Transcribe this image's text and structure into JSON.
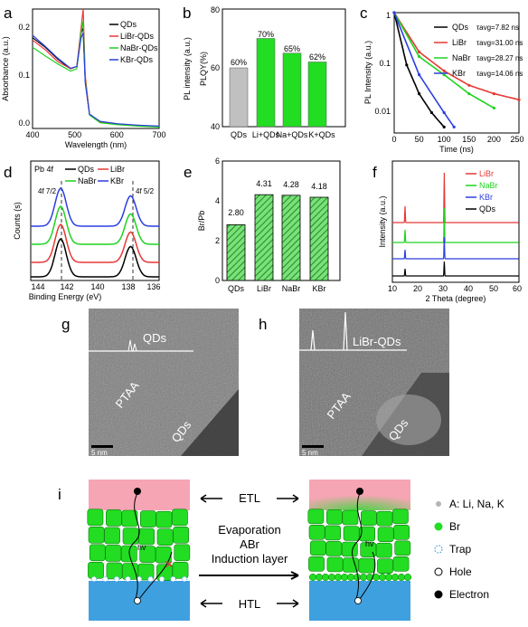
{
  "panels": {
    "a": {
      "label": "a",
      "xlabel": "Wavelength (nm)",
      "ylabel": "Absorbance (a.u.)",
      "xticks": [
        "400",
        "500",
        "600",
        "700"
      ],
      "yticks": [
        "0.0",
        "0.1",
        "0.2"
      ],
      "legend": [
        "QDs",
        "LiBr-QDs",
        "NaBr-QDs",
        "KBr-QDs"
      ]
    },
    "b": {
      "label": "b",
      "ylabel": "PLQY(%)",
      "y2label": "PL intensity (a.u.)",
      "yticks": [
        "40",
        "60",
        "80"
      ],
      "bar_labels": [
        "60%",
        "70%",
        "65%",
        "62%"
      ],
      "categories": [
        "QDs",
        "Li+QDs",
        "Na+QDs",
        "K+QDs"
      ]
    },
    "c": {
      "label": "c",
      "xlabel": "Time (ns)",
      "ylabel": "PL Intensity (a.u.)",
      "xticks": [
        "0",
        "50",
        "100",
        "150",
        "200",
        "250"
      ],
      "yticks": [
        "1",
        "0.1",
        "0.01"
      ],
      "legend": [
        {
          "name": "QDs",
          "tau": "τavg=7.82 ns"
        },
        {
          "name": "LiBr",
          "tau": "τavg=31.00 ns"
        },
        {
          "name": "NaBr",
          "tau": "τavg=28.27 ns"
        },
        {
          "name": "KBr",
          "tau": "τavg=14.06 ns"
        }
      ]
    },
    "d": {
      "label": "d",
      "xlabel": "Binding Energy (eV)",
      "ylabel": "Counts (s)",
      "xticks": [
        "144",
        "142",
        "140",
        "138",
        "136"
      ],
      "tag": "Pb 4f",
      "legend": [
        "QDs",
        "LiBr",
        "NaBr",
        "KBr"
      ],
      "peak1": "4f 7/2",
      "peak2": "4f 5/2"
    },
    "e": {
      "label": "e",
      "ylabel": "Br/Pb",
      "yticks": [
        "0",
        "2",
        "4",
        "6"
      ],
      "bar_labels": [
        "2.80",
        "4.31",
        "4.28",
        "4.18"
      ],
      "categories": [
        "QDs",
        "LiBr",
        "NaBr",
        "KBr"
      ]
    },
    "f": {
      "label": "f",
      "xlabel": "2 Theta (degree)",
      "ylabel": "Intensity (a.u.)",
      "xticks": [
        "10",
        "20",
        "30",
        "40",
        "50",
        "60"
      ],
      "legend": [
        "LiBr",
        "NaBr",
        "KBr",
        "QDs"
      ]
    },
    "g": {
      "label": "g",
      "title": "QDs",
      "region1": "PTAA",
      "region2": "QDs",
      "scale": "5 nm"
    },
    "h": {
      "label": "h",
      "title": "LiBr-QDs",
      "region1": "PTAA",
      "region2": "QDs",
      "scale": "5 nm"
    },
    "i": {
      "label": "i",
      "etl": "ETL",
      "htl": "HTL",
      "process": [
        "Evaporation",
        "ABr",
        "Induction layer"
      ],
      "hv": "hv",
      "hole_mark": "h",
      "legend": [
        "A: Li, Na, K",
        "Br",
        "Trap",
        "Hole",
        "Electron"
      ]
    }
  },
  "colors": {
    "QDs": "#000000",
    "LiBr": "#e53935",
    "NaBr": "#1ed31e",
    "KBr": "#2b3fe0",
    "bar_gray": "#c0c0c0",
    "bar_green": "#22dd22",
    "hatch_green": "#1fa81f",
    "etl": "#f6a5b4",
    "htl": "#3fa0e0"
  },
  "chart_data": [
    {
      "type": "line",
      "panel": "a",
      "xlabel": "Wavelength (nm)",
      "ylabel": "Absorbance (a.u.)",
      "xlim": [
        400,
        700
      ],
      "ylim": [
        0,
        0.25
      ],
      "series": [
        {
          "name": "QDs",
          "x": [
            400,
            430,
            460,
            490,
            505,
            515,
            520,
            525,
            535,
            560,
            600,
            650,
            700
          ],
          "y": [
            0.19,
            0.17,
            0.145,
            0.125,
            0.13,
            0.2,
            0.21,
            0.1,
            0.03,
            0.014,
            0.009,
            0.006,
            0.004
          ]
        },
        {
          "name": "LiBr-QDs",
          "x": [
            400,
            430,
            460,
            490,
            505,
            515,
            520,
            525,
            535,
            560,
            600,
            650,
            700
          ],
          "y": [
            0.185,
            0.165,
            0.14,
            0.125,
            0.13,
            0.21,
            0.25,
            0.11,
            0.03,
            0.014,
            0.009,
            0.006,
            0.004
          ]
        },
        {
          "name": "NaBr-QDs",
          "x": [
            400,
            430,
            460,
            490,
            505,
            515,
            520,
            525,
            535,
            560,
            600,
            650,
            700
          ],
          "y": [
            0.17,
            0.152,
            0.135,
            0.12,
            0.125,
            0.2,
            0.225,
            0.1,
            0.028,
            0.012,
            0.008,
            0.005,
            0.003
          ]
        },
        {
          "name": "KBr-QDs",
          "x": [
            400,
            430,
            460,
            490,
            505,
            515,
            520,
            525,
            535,
            560,
            600,
            650,
            700
          ],
          "y": [
            0.195,
            0.172,
            0.147,
            0.126,
            0.13,
            0.19,
            0.2,
            0.095,
            0.03,
            0.015,
            0.01,
            0.007,
            0.005
          ]
        }
      ]
    },
    {
      "type": "bar",
      "panel": "b",
      "ylabel": "PLQY(%)",
      "ylim": [
        40,
        80
      ],
      "categories": [
        "QDs",
        "Li+QDs",
        "Na+QDs",
        "K+QDs"
      ],
      "values": [
        60,
        70,
        65,
        62
      ]
    },
    {
      "type": "line",
      "panel": "c",
      "xlabel": "Time (ns)",
      "ylabel": "PL Intensity (a.u.)",
      "xlim": [
        0,
        250
      ],
      "ylim": [
        0.003,
        1
      ],
      "yscale": "log",
      "series": [
        {
          "name": "QDs",
          "tau": 7.82,
          "x": [
            0,
            25,
            50,
            75,
            100
          ],
          "y": [
            1,
            0.08,
            0.02,
            0.008,
            0.004
          ]
        },
        {
          "name": "LiBr",
          "tau": 31.0,
          "x": [
            0,
            50,
            100,
            150,
            200,
            250
          ],
          "y": [
            1,
            0.15,
            0.06,
            0.03,
            0.02,
            0.015
          ]
        },
        {
          "name": "NaBr",
          "tau": 28.27,
          "x": [
            0,
            50,
            100,
            150,
            200
          ],
          "y": [
            1,
            0.12,
            0.05,
            0.02,
            0.01
          ]
        },
        {
          "name": "KBr",
          "tau": 14.06,
          "x": [
            0,
            50,
            100,
            120
          ],
          "y": [
            1,
            0.05,
            0.008,
            0.004
          ]
        }
      ]
    },
    {
      "type": "line",
      "panel": "d",
      "xlabel": "Binding Energy (eV)",
      "ylabel": "Counts (s)",
      "xlim": [
        145,
        136
      ],
      "series": [
        {
          "name": "QDs",
          "peaks": [
            142.9,
            138.0
          ]
        },
        {
          "name": "LiBr",
          "peaks": [
            142.9,
            138.0
          ]
        },
        {
          "name": "NaBr",
          "peaks": [
            142.9,
            138.0
          ]
        },
        {
          "name": "KBr",
          "peaks": [
            142.9,
            138.0
          ]
        }
      ]
    },
    {
      "type": "bar",
      "panel": "e",
      "ylabel": "Br/Pb",
      "ylim": [
        0,
        6
      ],
      "categories": [
        "QDs",
        "LiBr",
        "NaBr",
        "KBr"
      ],
      "values": [
        2.8,
        4.31,
        4.28,
        4.18
      ]
    },
    {
      "type": "line",
      "panel": "f",
      "xlabel": "2 Theta (degree)",
      "ylabel": "Intensity (a.u.)",
      "xlim": [
        10,
        60
      ],
      "series": [
        {
          "name": "LiBr",
          "peaks": [
            15,
            30.5
          ]
        },
        {
          "name": "NaBr",
          "peaks": [
            15,
            30.5
          ]
        },
        {
          "name": "KBr",
          "peaks": [
            15,
            30.5
          ]
        },
        {
          "name": "QDs",
          "peaks": [
            15,
            30.5
          ]
        }
      ]
    }
  ]
}
